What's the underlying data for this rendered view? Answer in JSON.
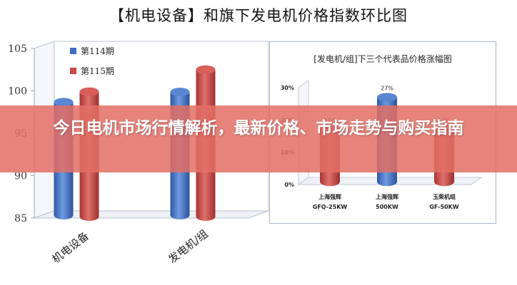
{
  "page": {
    "title": "【机电设备】和旗下发电机价格指数环比图",
    "banner": "今日电机市场行情解析，最新价格、市场走势与购买指南"
  },
  "chart_data": [
    {
      "type": "bar",
      "title": "【机电设备】和旗下发电机价格指数环比图",
      "categories": [
        "机电设备",
        "发电机/组"
      ],
      "series": [
        {
          "name": "第114期",
          "values": [
            98.5,
            99.7
          ],
          "color": "#3f6fc4"
        },
        {
          "name": "第115期",
          "values": [
            99.4,
            102.0
          ],
          "color": "#c94846"
        }
      ],
      "ylim": [
        85,
        105
      ],
      "yticks": [
        85,
        90,
        95,
        100,
        105
      ],
      "legend": "top-left",
      "grid": false
    },
    {
      "type": "bar",
      "title": "[发电机/组]下三个代表品价格涨幅图",
      "categories": [
        "上海强辉",
        "上海强辉",
        "玉柴机组"
      ],
      "subcategories": [
        "GFQ-25KW",
        "500KW",
        "GF-50KW"
      ],
      "values": [
        17,
        27,
        17
      ],
      "value_labels": [
        "17%",
        "27%",
        "17%"
      ],
      "ylim": [
        0,
        30
      ],
      "yticks": [
        "0%",
        "10%",
        "20%",
        "30%"
      ],
      "colors": [
        "#c94846",
        "#3f6fc4",
        "#c94846"
      ],
      "legend": "none"
    }
  ]
}
